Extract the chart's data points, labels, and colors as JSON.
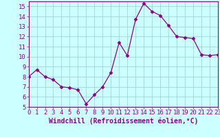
{
  "x": [
    0,
    1,
    2,
    3,
    4,
    5,
    6,
    7,
    8,
    9,
    10,
    11,
    12,
    13,
    14,
    15,
    16,
    17,
    18,
    19,
    20,
    21,
    22,
    23
  ],
  "y": [
    8.0,
    8.7,
    8.0,
    7.7,
    7.0,
    6.9,
    6.7,
    5.3,
    6.2,
    7.0,
    8.4,
    11.4,
    10.1,
    13.7,
    15.3,
    14.5,
    14.1,
    13.1,
    12.0,
    11.9,
    11.8,
    10.2,
    10.1,
    10.2
  ],
  "line_color": "#880088",
  "marker": "D",
  "marker_size": 2.5,
  "bg_color": "#ccffff",
  "grid_color": "#99cccc",
  "xlabel": "Windchill (Refroidissement éolien,°C)",
  "xlim": [
    0,
    23
  ],
  "ylim": [
    5,
    15.5
  ],
  "yticks": [
    5,
    6,
    7,
    8,
    9,
    10,
    11,
    12,
    13,
    14,
    15
  ],
  "xticks": [
    0,
    1,
    2,
    3,
    4,
    5,
    6,
    7,
    8,
    9,
    10,
    11,
    12,
    13,
    14,
    15,
    16,
    17,
    18,
    19,
    20,
    21,
    22,
    23
  ],
  "xtick_labels": [
    "0",
    "1",
    "2",
    "3",
    "4",
    "5",
    "6",
    "7",
    "8",
    "9",
    "10",
    "11",
    "12",
    "13",
    "14",
    "15",
    "16",
    "17",
    "18",
    "19",
    "20",
    "21",
    "22",
    "23"
  ],
  "label_color": "#880088",
  "tick_color": "#880088",
  "axis_color": "#880088",
  "font_size": 6.5,
  "xlabel_fontsize": 7
}
